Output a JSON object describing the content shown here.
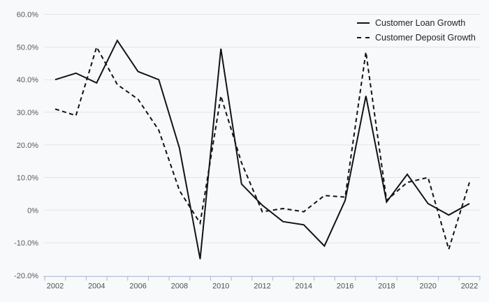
{
  "chart_data": {
    "type": "line",
    "title": "",
    "xlabel": "",
    "ylabel": "",
    "x": [
      2002,
      2003,
      2004,
      2005,
      2006,
      2007,
      2008,
      2009,
      2010,
      2011,
      2012,
      2013,
      2014,
      2015,
      2016,
      2017,
      2018,
      2019,
      2020,
      2021,
      2022
    ],
    "x_tick_labels": [
      "2002",
      "2004",
      "2006",
      "2008",
      "2010",
      "2012",
      "2014",
      "2016",
      "2018",
      "2020",
      "2022"
    ],
    "y_tick_values": [
      60,
      50,
      40,
      30,
      20,
      10,
      0,
      -10,
      -20
    ],
    "y_tick_labels": [
      "60.0%",
      "50.0%",
      "40.0%",
      "30.0%",
      "20.0%",
      "10.0%",
      "0%",
      "-10.0%",
      "-20.0%"
    ],
    "ylim": [
      -20,
      60
    ],
    "grid": "horizontal",
    "legend_position": "top-right",
    "series": [
      {
        "name": "Customer Loan Growth",
        "style": "solid",
        "values": [
          40,
          42,
          39,
          52,
          42.5,
          40,
          19,
          -15,
          49.5,
          8,
          1.5,
          -3.5,
          -4.5,
          -11,
          3,
          35,
          2.5,
          11,
          2,
          -1.5,
          2
        ]
      },
      {
        "name": "Customer Deposit Growth",
        "style": "dashed",
        "values": [
          31,
          29,
          50,
          38.5,
          34,
          24.5,
          6,
          -4,
          35,
          14.5,
          -0.5,
          0.5,
          -0.5,
          4.5,
          4,
          48.5,
          3,
          8.5,
          10,
          -12,
          8.5
        ]
      }
    ]
  },
  "colors": {
    "background": "#f8f9fa",
    "gridline": "#e3e4e6",
    "axis": "#b6c0d4",
    "tick_label": "#4c4f54",
    "y_label": "#55595e",
    "line": "#131313",
    "legend_text": "#1f1f1f"
  }
}
